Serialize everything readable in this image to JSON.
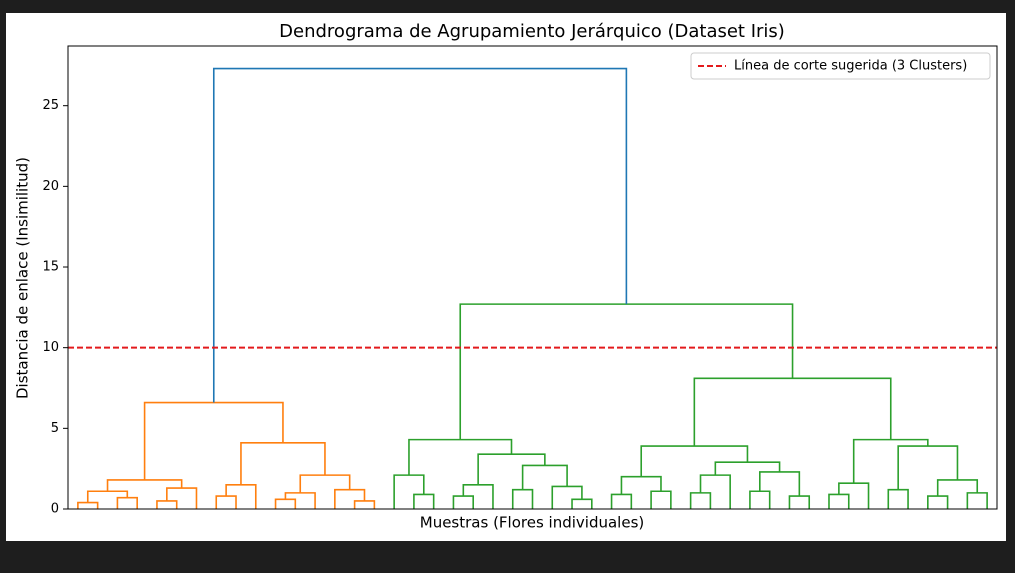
{
  "chart_data": {
    "type": "dendrogram",
    "title": "Dendrograma de Agrupamiento Jerárquico (Dataset Iris)",
    "xlabel": "Muestras (Flores individuales)",
    "ylabel": "Distancia de enlace (Insimilitud)",
    "ylim": [
      0,
      28.7
    ],
    "yticks": [
      0,
      5,
      10,
      15,
      20,
      25
    ],
    "cut_line": {
      "value": 10,
      "label": "Línea de corte sugerida (3 Clusters)",
      "color": "#e31a1c"
    },
    "legend": "upper right",
    "tree": {
      "height": 27.3,
      "color": "#1f77b4",
      "children": [
        {
          "height": 6.6,
          "color": "#ff7f0e",
          "children": [
            {
              "height": 1.8,
              "children": [
                {
                  "height": 1.1,
                  "children": [
                    {
                      "height": 0.4,
                      "children": [
                        {
                          "height": 0
                        },
                        {
                          "height": 0
                        }
                      ]
                    },
                    {
                      "height": 0.7,
                      "children": [
                        {
                          "height": 0
                        },
                        {
                          "height": 0
                        }
                      ]
                    }
                  ]
                },
                {
                  "height": 1.3,
                  "children": [
                    {
                      "height": 0.5,
                      "children": [
                        {
                          "height": 0
                        },
                        {
                          "height": 0
                        }
                      ]
                    },
                    {
                      "height": 0
                    }
                  ]
                }
              ]
            },
            {
              "height": 4.1,
              "children": [
                {
                  "height": 1.5,
                  "children": [
                    {
                      "height": 0.8,
                      "children": [
                        {
                          "height": 0
                        },
                        {
                          "height": 0
                        }
                      ]
                    },
                    {
                      "height": 0
                    }
                  ]
                },
                {
                  "height": 2.1,
                  "children": [
                    {
                      "height": 1.0,
                      "children": [
                        {
                          "height": 0.6,
                          "children": [
                            {
                              "height": 0
                            },
                            {
                              "height": 0
                            }
                          ]
                        },
                        {
                          "height": 0
                        }
                      ]
                    },
                    {
                      "height": 1.2,
                      "children": [
                        {
                          "height": 0
                        },
                        {
                          "height": 0.5,
                          "children": [
                            {
                              "height": 0
                            },
                            {
                              "height": 0
                            }
                          ]
                        }
                      ]
                    }
                  ]
                }
              ]
            }
          ]
        },
        {
          "height": 12.7,
          "color": "#2ca02c",
          "children": [
            {
              "height": 4.3,
              "children": [
                {
                  "height": 2.1,
                  "children": [
                    {
                      "height": 0
                    },
                    {
                      "height": 0.9,
                      "children": [
                        {
                          "height": 0
                        },
                        {
                          "height": 0
                        }
                      ]
                    }
                  ]
                },
                {
                  "height": 3.4,
                  "children": [
                    {
                      "height": 1.5,
                      "children": [
                        {
                          "height": 0.8,
                          "children": [
                            {
                              "height": 0
                            },
                            {
                              "height": 0
                            }
                          ]
                        },
                        {
                          "height": 0
                        }
                      ]
                    },
                    {
                      "height": 2.7,
                      "children": [
                        {
                          "height": 1.2,
                          "children": [
                            {
                              "height": 0
                            },
                            {
                              "height": 0
                            }
                          ]
                        },
                        {
                          "height": 1.4,
                          "children": [
                            {
                              "height": 0
                            },
                            {
                              "height": 0.6,
                              "children": [
                                {
                                  "height": 0
                                },
                                {
                                  "height": 0
                                }
                              ]
                            }
                          ]
                        }
                      ]
                    }
                  ]
                }
              ]
            },
            {
              "height": 8.1,
              "children": [
                {
                  "height": 3.9,
                  "children": [
                    {
                      "height": 2.0,
                      "children": [
                        {
                          "height": 0.9,
                          "children": [
                            {
                              "height": 0
                            },
                            {
                              "height": 0
                            }
                          ]
                        },
                        {
                          "height": 1.1,
                          "children": [
                            {
                              "height": 0
                            },
                            {
                              "height": 0
                            }
                          ]
                        }
                      ]
                    },
                    {
                      "height": 2.9,
                      "children": [
                        {
                          "height": 2.1,
                          "children": [
                            {
                              "height": 1.0,
                              "children": [
                                {
                                  "height": 0
                                },
                                {
                                  "height": 0
                                }
                              ]
                            },
                            {
                              "height": 0
                            }
                          ]
                        },
                        {
                          "height": 2.3,
                          "children": [
                            {
                              "height": 1.1,
                              "children": [
                                {
                                  "height": 0
                                },
                                {
                                  "height": 0
                                }
                              ]
                            },
                            {
                              "height": 0.8,
                              "children": [
                                {
                                  "height": 0
                                },
                                {
                                  "height": 0
                                }
                              ]
                            }
                          ]
                        }
                      ]
                    }
                  ]
                },
                {
                  "height": 4.3,
                  "children": [
                    {
                      "height": 1.6,
                      "children": [
                        {
                          "height": 0.9,
                          "children": [
                            {
                              "height": 0
                            },
                            {
                              "height": 0
                            }
                          ]
                        },
                        {
                          "height": 0
                        }
                      ]
                    },
                    {
                      "height": 3.9,
                      "children": [
                        {
                          "height": 1.2,
                          "children": [
                            {
                              "height": 0
                            },
                            {
                              "height": 0
                            }
                          ]
                        },
                        {
                          "height": 1.8,
                          "children": [
                            {
                              "height": 0.8,
                              "children": [
                                {
                                  "height": 0
                                },
                                {
                                  "height": 0
                                }
                              ]
                            },
                            {
                              "height": 1.0,
                              "children": [
                                {
                                  "height": 0
                                },
                                {
                                  "height": 0
                                }
                              ]
                            }
                          ]
                        }
                      ]
                    }
                  ]
                }
              ]
            }
          ]
        }
      ]
    }
  }
}
